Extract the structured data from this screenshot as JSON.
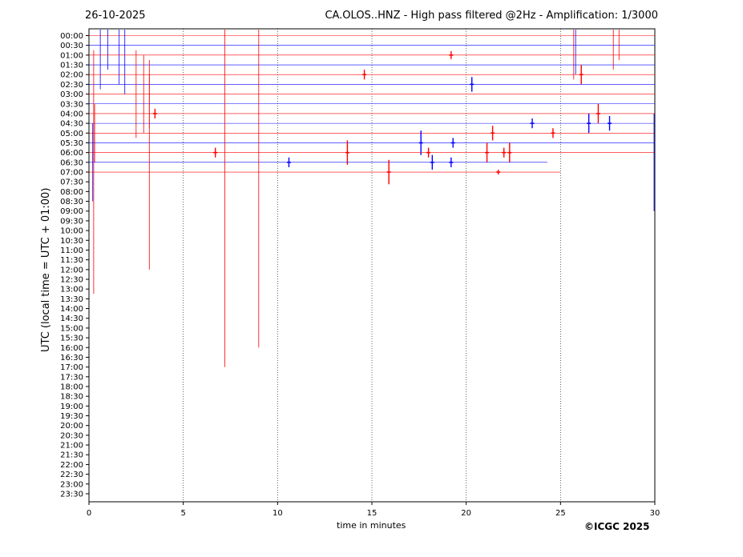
{
  "header": {
    "date": "26-10-2025",
    "title": "CA.OLOS..HNZ - High pass filtered @2Hz - Amplification: 1/3000"
  },
  "footer": {
    "copyright": "©ICGC 2025"
  },
  "chart_data": {
    "type": "line",
    "title": "CA.OLOS..HNZ - High pass filtered @2Hz - Amplification: 1/3000",
    "xlabel": "time in minutes",
    "ylabel": "UTC (local time = UTC + 01:00)",
    "xlim": [
      0,
      30
    ],
    "xticks": [
      0,
      5,
      10,
      15,
      20,
      25,
      30
    ],
    "ytick_labels": [
      "00:00",
      "00:30",
      "01:00",
      "01:30",
      "02:00",
      "02:30",
      "03:00",
      "03:30",
      "04:00",
      "04:30",
      "05:00",
      "05:30",
      "06:00",
      "06:30",
      "07:00",
      "07:30",
      "08:00",
      "08:30",
      "09:00",
      "09:30",
      "10:00",
      "10:30",
      "11:00",
      "11:30",
      "12:00",
      "12:30",
      "13:00",
      "13:30",
      "14:00",
      "14:30",
      "15:00",
      "15:30",
      "16:00",
      "16:30",
      "17:00",
      "17:30",
      "18:00",
      "18:30",
      "19:00",
      "19:30",
      "20:00",
      "20:30",
      "21:00",
      "21:30",
      "22:00",
      "22:30",
      "23:00",
      "23:30"
    ],
    "grid": "vertical dotted lines at every 5 minutes",
    "colors": {
      "even_rows": "#ff0000",
      "odd_rows": "#0000ff"
    },
    "traces": [
      {
        "row": "00:00",
        "color": "red",
        "start": 0,
        "end": 30,
        "events": [
          [
            25.7,
            9
          ],
          [
            27.8,
            7
          ],
          [
            28.1,
            5
          ]
        ]
      },
      {
        "row": "00:30",
        "color": "blue",
        "start": 0,
        "end": 30,
        "events": [
          [
            0.6,
            9
          ],
          [
            1.0,
            5
          ],
          [
            1.6,
            8
          ],
          [
            1.9,
            10
          ],
          [
            25.8,
            6
          ]
        ]
      },
      {
        "row": "01:00",
        "color": "red",
        "start": 0,
        "end": 30,
        "events": [
          [
            19.2,
            0.8
          ]
        ]
      },
      {
        "row": "01:30",
        "color": "blue",
        "start": 0,
        "end": 30,
        "events": []
      },
      {
        "row": "02:00",
        "color": "red",
        "start": 0,
        "end": 30,
        "events": [
          [
            14.6,
            1
          ],
          [
            26.1,
            2
          ]
        ]
      },
      {
        "row": "02:30",
        "color": "blue",
        "start": 0,
        "end": 30,
        "events": [
          [
            20.3,
            1.5
          ]
        ]
      },
      {
        "row": "03:00",
        "color": "red",
        "start": 0,
        "end": 30,
        "events": [
          [
            2.5,
            9
          ],
          [
            2.9,
            8
          ],
          [
            3.2,
            7
          ]
        ]
      },
      {
        "row": "03:30",
        "color": "blue",
        "start": 0,
        "end": 30,
        "events": []
      },
      {
        "row": "04:00",
        "color": "red",
        "start": 0,
        "end": 30,
        "events": [
          [
            3.5,
            1
          ],
          [
            27.0,
            2
          ]
        ]
      },
      {
        "row": "04:30",
        "color": "blue",
        "start": 0,
        "end": 30,
        "events": [
          [
            23.5,
            1
          ],
          [
            26.5,
            2
          ],
          [
            27.6,
            1.5
          ]
        ]
      },
      {
        "row": "05:00",
        "color": "red",
        "start": 0,
        "end": 30,
        "events": [
          [
            0.3,
            6
          ],
          [
            21.4,
            1.5
          ],
          [
            24.6,
            1
          ]
        ]
      },
      {
        "row": "05:30",
        "color": "blue",
        "start": 0,
        "end": 30,
        "events": [
          [
            17.6,
            2.5
          ],
          [
            19.3,
            1
          ]
        ]
      },
      {
        "row": "06:00",
        "color": "red",
        "start": 0,
        "end": 30,
        "events": [
          [
            6.7,
            1
          ],
          [
            13.7,
            2.5
          ],
          [
            18.0,
            1
          ],
          [
            21.1,
            2
          ],
          [
            22.0,
            1
          ],
          [
            22.3,
            2
          ]
        ]
      },
      {
        "row": "06:30",
        "color": "blue",
        "start": 0,
        "end": 24.3,
        "events": [
          [
            10.6,
            1
          ],
          [
            18.2,
            1.5
          ],
          [
            19.2,
            1
          ],
          [
            0.2,
            8
          ],
          [
            30,
            10
          ]
        ]
      },
      {
        "row": "07:00",
        "color": "red",
        "start": 0,
        "end": 25,
        "events": [
          [
            0.25,
            25
          ],
          [
            3.2,
            20
          ],
          [
            7.2,
            40
          ],
          [
            9.0,
            36
          ],
          [
            15.9,
            2.5
          ],
          [
            21.7,
            0.5
          ]
        ]
      }
    ]
  }
}
